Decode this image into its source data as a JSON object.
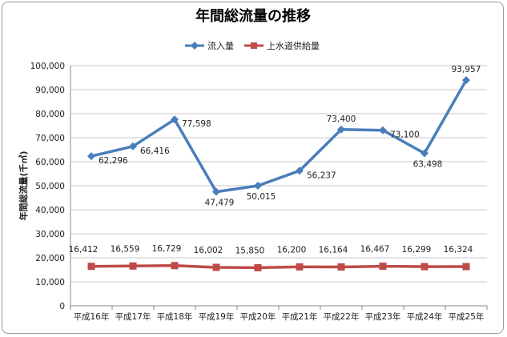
{
  "chart_data": {
    "type": "line",
    "title": "年間総流量の推移",
    "ylabel": "年間総流量(千㎥)",
    "xlabel": "",
    "categories": [
      "平成16年",
      "平成17年",
      "平成18年",
      "平成19年",
      "平成20年",
      "平成21年",
      "平成22年",
      "平成23年",
      "平成24年",
      "平成25年"
    ],
    "ylim": [
      0,
      100000
    ],
    "yticks": [
      0,
      10000,
      20000,
      30000,
      40000,
      50000,
      60000,
      70000,
      80000,
      90000,
      100000
    ],
    "ytick_labels": [
      "0",
      "10,000",
      "20,000",
      "30,000",
      "40,000",
      "50,000",
      "60,000",
      "70,000",
      "80,000",
      "90,000",
      "100,000"
    ],
    "grid": "horizontal",
    "legend_position": "top",
    "series": [
      {
        "name": "流入量",
        "color": "#4a7ebb",
        "marker": "diamond",
        "values": [
          62296,
          66416,
          77598,
          47479,
          50015,
          56237,
          73400,
          73100,
          63498,
          93957
        ],
        "labels": [
          "62,296",
          "66,416",
          "77,598",
          "47,479",
          "50,015",
          "56,237",
          "73,400",
          "73,100",
          "63,498",
          "93,957"
        ]
      },
      {
        "name": "上水道供給量",
        "color": "#be4b48",
        "marker": "square",
        "values": [
          16412,
          16559,
          16729,
          16002,
          15850,
          16200,
          16164,
          16467,
          16299,
          16324
        ],
        "labels": [
          "16,412",
          "16,559",
          "16,729",
          "16,002",
          "15,850",
          "16,200",
          "16,164",
          "16,467",
          "16,299",
          "16,324"
        ]
      }
    ]
  }
}
